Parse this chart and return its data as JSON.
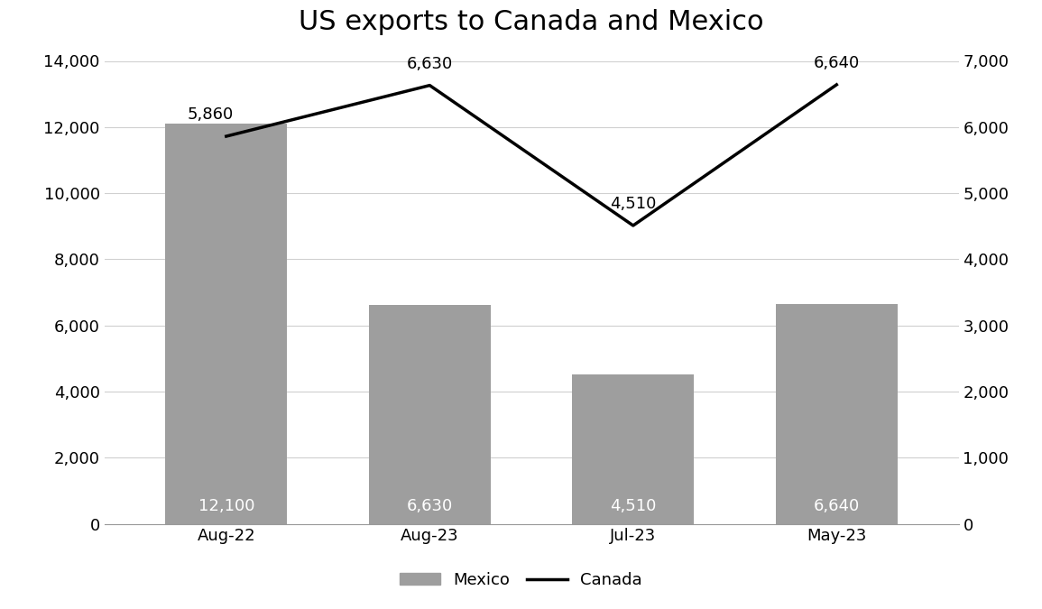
{
  "title": "US exports to Canada and Mexico",
  "categories": [
    "Aug-22",
    "Aug-23",
    "Jul-23",
    "May-23"
  ],
  "mexico_values": [
    12100,
    6630,
    4510,
    6640
  ],
  "canada_values": [
    5860,
    6630,
    4510,
    6640
  ],
  "bar_color": "#9e9e9e",
  "line_color": "#000000",
  "bar_label_color": "#ffffff",
  "bar_labels": [
    "12,100",
    "6,630",
    "4,510",
    "6,640"
  ],
  "line_labels": [
    "5,860",
    "6,630",
    "4,510",
    "6,640"
  ],
  "left_ylim": [
    0,
    14000
  ],
  "right_ylim": [
    0,
    7000
  ],
  "left_yticks": [
    0,
    2000,
    4000,
    6000,
    8000,
    10000,
    12000,
    14000
  ],
  "right_yticks": [
    0,
    1000,
    2000,
    3000,
    4000,
    5000,
    6000,
    7000
  ],
  "legend_mexico": "Mexico",
  "legend_canada": "Canada",
  "title_fontsize": 22,
  "tick_fontsize": 13,
  "label_fontsize": 13,
  "bar_label_fontsize": 13,
  "line_label_fontsize": 13,
  "background_color": "#ffffff",
  "grid_color": "#d0d0d0",
  "bar_width": 0.6
}
